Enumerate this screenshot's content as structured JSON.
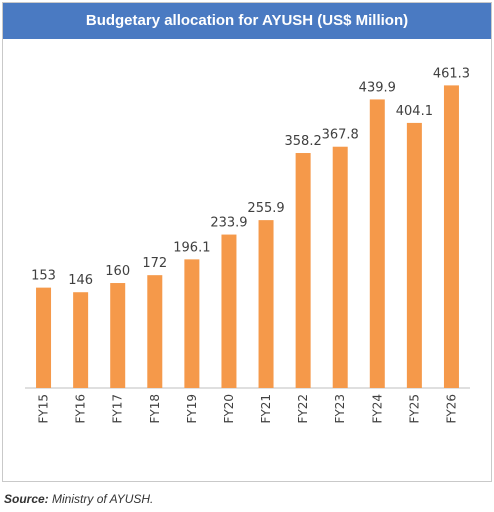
{
  "chart_data": {
    "type": "bar",
    "title": "Budgetary allocation for AYUSH (US$ Million)",
    "categories": [
      "FY15",
      "FY16",
      "FY17",
      "FY18",
      "FY19",
      "FY20",
      "FY21",
      "FY22",
      "FY23",
      "FY24",
      "FY25",
      "FY26"
    ],
    "values": [
      153,
      146,
      160,
      172,
      196.1,
      233.9,
      255.9,
      358.2,
      367.8,
      439.9,
      404.1,
      461.3
    ],
    "value_labels": [
      "153",
      "146",
      "160",
      "172",
      "196.1",
      "233.9",
      "255.9",
      "358.2",
      "367.8",
      "439.9",
      "404.1",
      "461.3"
    ],
    "ylim": [
      0,
      500
    ],
    "grid": false,
    "bar_color": "#f5994a"
  },
  "source": {
    "label": "Source:",
    "text": " Ministry of AYUSH."
  }
}
